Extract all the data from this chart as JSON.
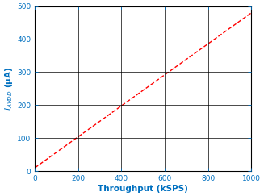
{
  "title": "",
  "xlabel": "Throughput (kSPS)",
  "xlim": [
    0,
    1000
  ],
  "ylim": [
    0,
    500
  ],
  "xticks": [
    0,
    200,
    400,
    600,
    800,
    1000
  ],
  "yticks": [
    0,
    100,
    200,
    300,
    400,
    500
  ],
  "x_data": [
    0,
    1000
  ],
  "y_data": [
    10,
    480
  ],
  "line_color": "#ff0000",
  "line_style": "--",
  "line_width": 1.0,
  "grid_color": "#000000",
  "grid_linewidth": 0.5,
  "tick_color": "#0070c0",
  "label_color": "#0070c0",
  "bg_color": "#ffffff",
  "figsize": [
    3.27,
    2.43
  ],
  "dpi": 100,
  "tick_fontsize": 6.5,
  "label_fontsize": 7.5
}
